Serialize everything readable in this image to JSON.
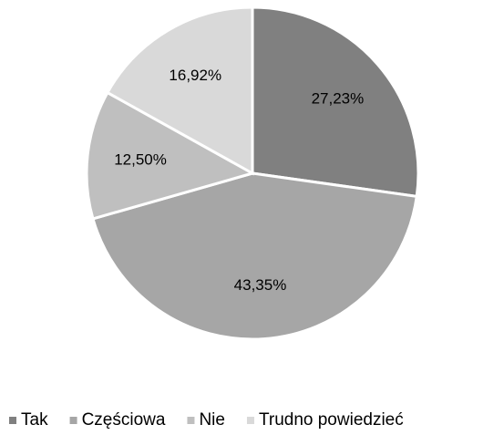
{
  "chart_data": {
    "type": "pie",
    "categories": [
      "Tak",
      "Częściowa",
      "Nie",
      "Trudno powiedzieć"
    ],
    "values": [
      27.23,
      43.35,
      12.5,
      16.92
    ],
    "value_labels": [
      "27,23%",
      "43,35%",
      "12,50%",
      "16,92%"
    ],
    "colors": [
      "#808080",
      "#a6a6a6",
      "#bfbfbf",
      "#d9d9d9"
    ],
    "legend": "bottom"
  }
}
